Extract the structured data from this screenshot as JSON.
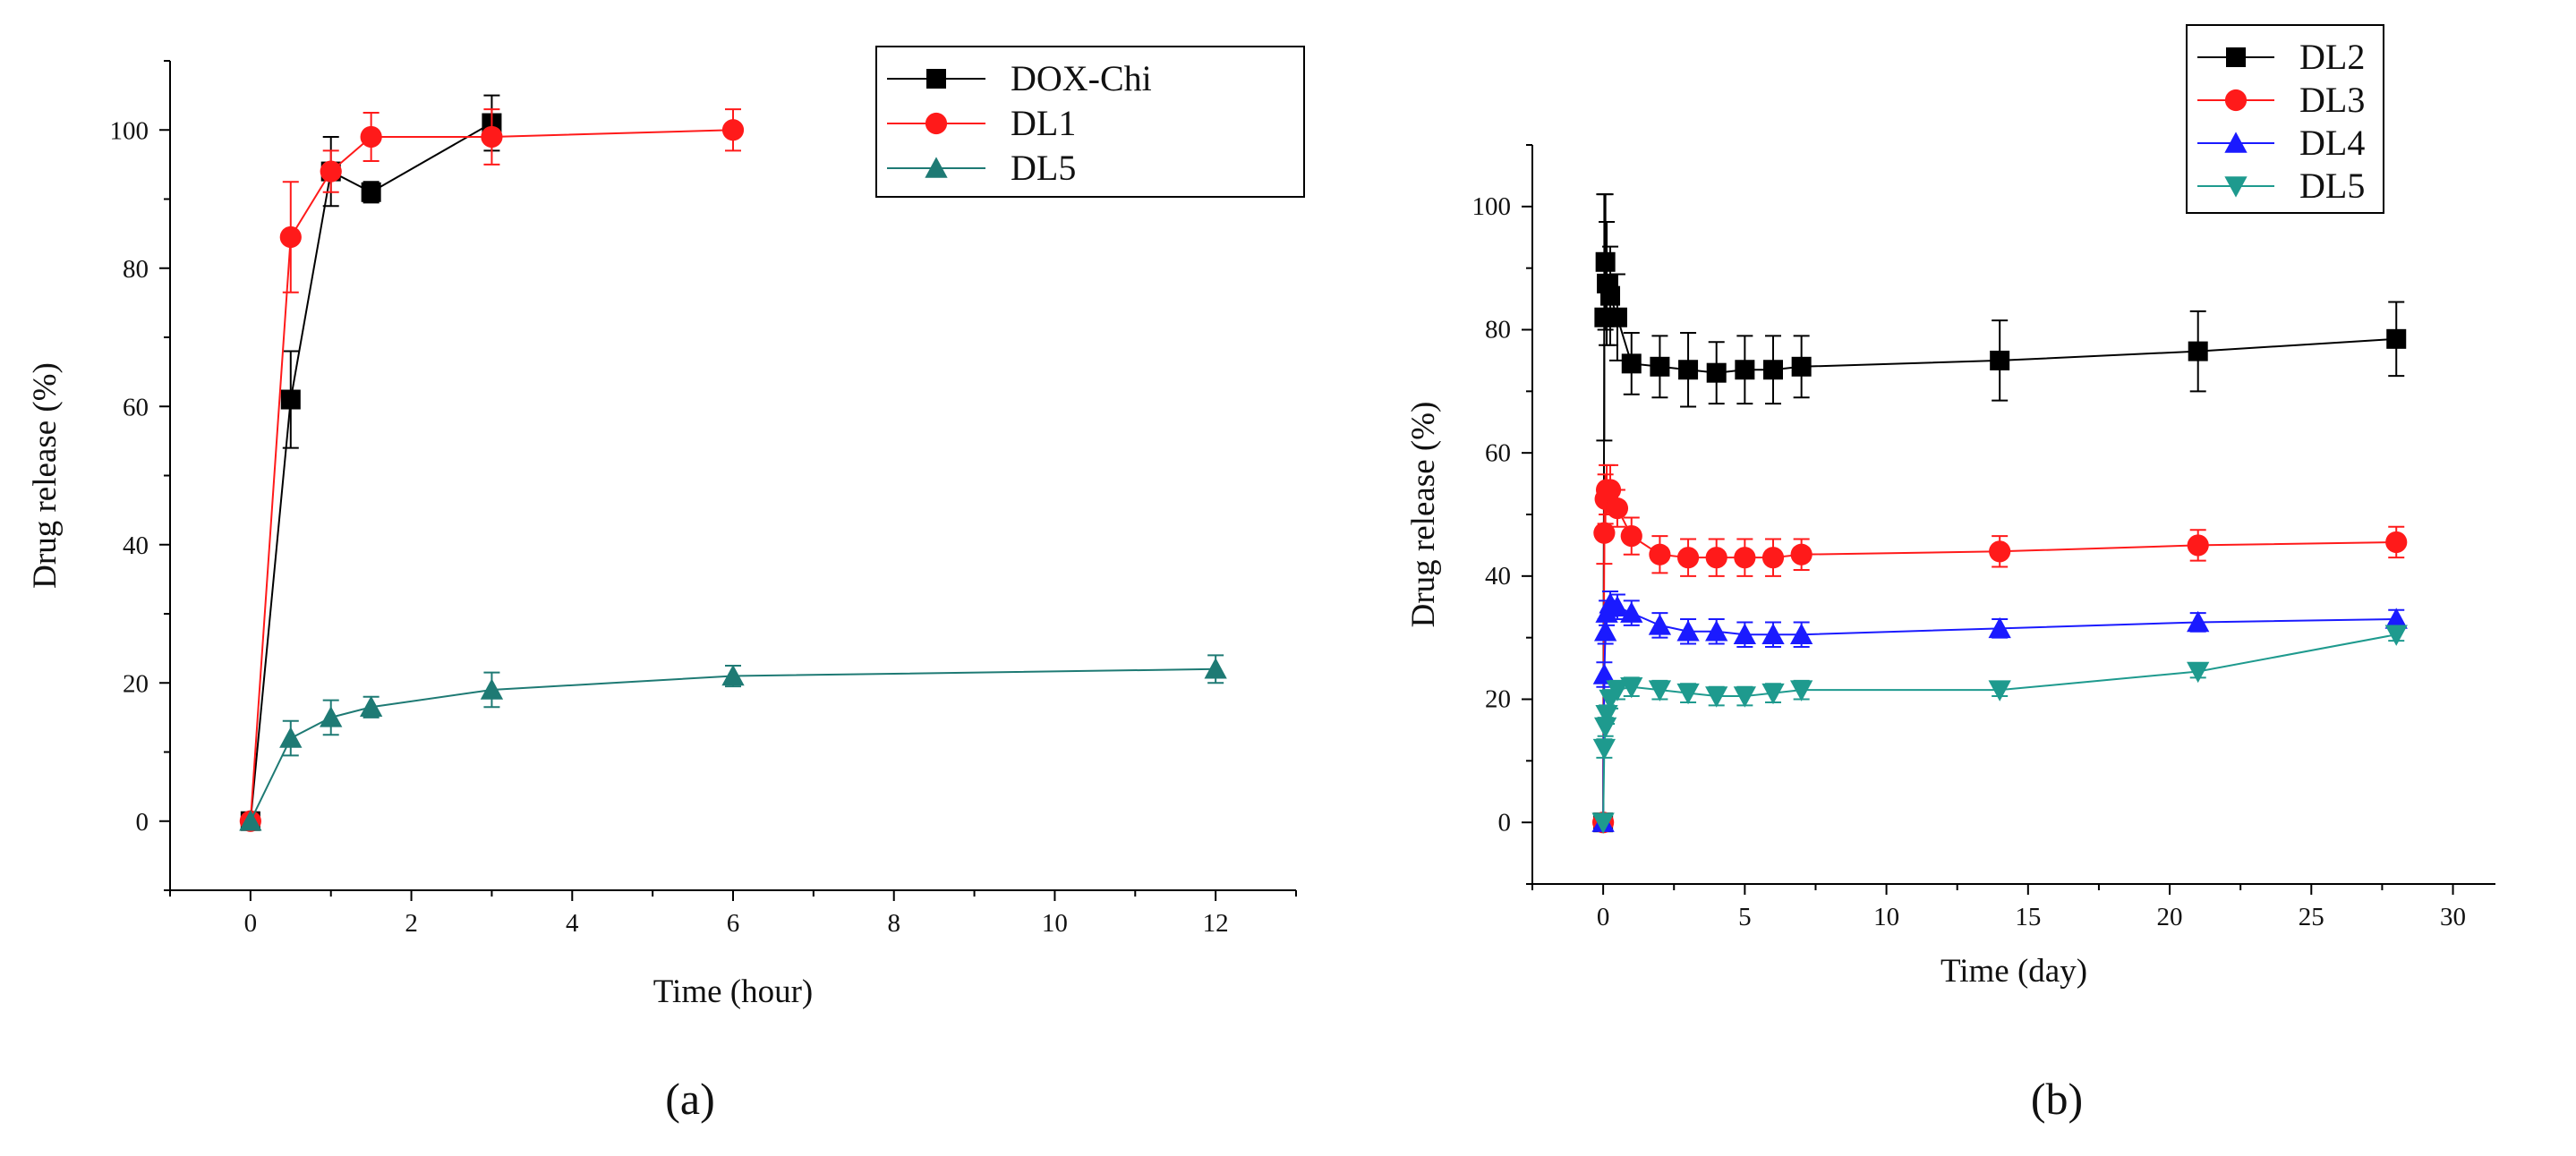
{
  "figure": {
    "panel_labels": [
      "(a)",
      "(b)"
    ]
  },
  "chart_data": [
    {
      "type": "line",
      "panel": "(a)",
      "title": "",
      "xlabel": "Time (hour)",
      "ylabel": "Drug release (%)",
      "xlim": [
        -1,
        13
      ],
      "ylim": [
        -10,
        110
      ],
      "xticks": [
        0,
        2,
        4,
        6,
        8,
        10,
        12
      ],
      "yticks": [
        0,
        20,
        40,
        60,
        80,
        100
      ],
      "grid": false,
      "legend_position": "top-right",
      "series": [
        {
          "name": "DOX-Chi",
          "color": "#000000",
          "marker": "square",
          "x": [
            0,
            0.5,
            1,
            1.5,
            3
          ],
          "y": [
            0,
            61,
            94,
            91,
            101
          ],
          "err": [
            0,
            7,
            5,
            1.5,
            4
          ]
        },
        {
          "name": "DL1",
          "color": "#ff1a1a",
          "marker": "circle",
          "x": [
            0,
            0.5,
            1,
            1.5,
            3,
            6
          ],
          "y": [
            0,
            84.5,
            94,
            99,
            99,
            100
          ],
          "err": [
            0,
            8,
            3,
            3.5,
            4,
            3
          ]
        },
        {
          "name": "DL5",
          "color": "#1e7a74",
          "marker": "triangle-up",
          "x": [
            0,
            0.5,
            1,
            1.5,
            3,
            6,
            12
          ],
          "y": [
            0,
            12,
            15,
            16.5,
            19,
            21,
            22
          ],
          "err": [
            0,
            2.5,
            2.5,
            1.5,
            2.5,
            1.5,
            2
          ]
        }
      ]
    },
    {
      "type": "line",
      "panel": "(b)",
      "title": "",
      "xlabel": "Time (day)",
      "ylabel": "Drug release (%)",
      "xlim": [
        -2.5,
        31.5
      ],
      "ylim": [
        -10,
        110
      ],
      "xticks": [
        0,
        5,
        10,
        15,
        20,
        25,
        30
      ],
      "yticks": [
        0,
        20,
        40,
        60,
        80,
        100
      ],
      "grid": false,
      "legend_position": "top-right",
      "series": [
        {
          "name": "DL2",
          "color": "#000000",
          "marker": "square",
          "x": [
            0,
            0.04,
            0.08,
            0.125,
            0.25,
            0.5,
            1,
            2,
            3,
            4,
            5,
            6,
            7,
            14,
            21,
            28
          ],
          "y": [
            0,
            82,
            91,
            87.5,
            85.5,
            82,
            74.5,
            74,
            73.5,
            73,
            73.5,
            73.5,
            74,
            75,
            76.5,
            78.5
          ],
          "err": [
            0,
            20,
            11,
            10,
            8,
            7,
            5,
            5,
            6,
            5,
            5.5,
            5.5,
            5,
            6.5,
            6.5,
            6
          ]
        },
        {
          "name": "DL3",
          "color": "#ff1a1a",
          "marker": "circle",
          "x": [
            0,
            0.04,
            0.08,
            0.125,
            0.25,
            0.5,
            1,
            2,
            3,
            4,
            5,
            6,
            7,
            14,
            21,
            28
          ],
          "y": [
            0,
            47,
            52.5,
            54,
            54,
            51,
            46.5,
            43.5,
            43,
            43,
            43,
            43,
            43.5,
            44,
            45,
            45.5
          ],
          "err": [
            0,
            5,
            4,
            4,
            4,
            3,
            3,
            3,
            3,
            3,
            3,
            3,
            2.5,
            2.5,
            2.5,
            2.5
          ]
        },
        {
          "name": "DL4",
          "color": "#1a1aff",
          "marker": "triangle-up",
          "x": [
            0,
            0.04,
            0.08,
            0.125,
            0.25,
            0.5,
            1,
            2,
            3,
            4,
            5,
            6,
            7,
            14,
            21,
            28
          ],
          "y": [
            0,
            24,
            31,
            34,
            35.5,
            35,
            34,
            32,
            31,
            31,
            30.5,
            30.5,
            30.5,
            31.5,
            32.5,
            33
          ],
          "err": [
            0,
            2,
            2,
            2,
            2,
            2,
            2,
            2,
            2,
            2,
            2,
            2,
            2,
            1.5,
            1.5,
            1.5
          ]
        },
        {
          "name": "DL5",
          "color": "#1e9a8e",
          "marker": "triangle-down",
          "x": [
            0,
            0.04,
            0.08,
            0.125,
            0.25,
            0.5,
            1,
            2,
            3,
            4,
            5,
            6,
            7,
            14,
            21,
            28
          ],
          "y": [
            0,
            12,
            15.5,
            17.5,
            20,
            21.5,
            22,
            21.5,
            21,
            20.5,
            20.5,
            21,
            21.5,
            21.5,
            24.5,
            30.5
          ],
          "err": [
            0,
            1.5,
            1.5,
            1.5,
            1.5,
            1.5,
            1.5,
            1.5,
            1.5,
            1.5,
            1.5,
            1.5,
            1.5,
            1,
            1,
            1
          ]
        }
      ]
    }
  ]
}
